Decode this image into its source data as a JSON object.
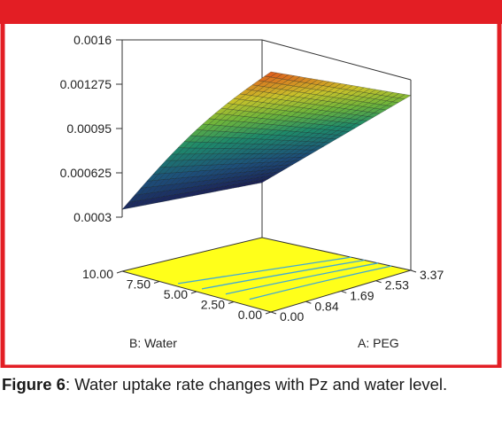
{
  "colors": {
    "frame_red": "#e31e24",
    "floor_yellow": "#ffff1a",
    "contour_blue": "#3fa8d8",
    "surface_low": "#1a1f5e",
    "surface_high": "#e05a1c"
  },
  "caption": {
    "label": "Figure 6",
    "text": ": Water uptake rate changes with Pz and water level."
  },
  "chart_data": {
    "type": "surface3d",
    "title": "",
    "z_axis": {
      "label": "",
      "ticks": [
        "0.0016",
        "0.001275",
        "0.00095",
        "0.000625",
        "0.0003"
      ],
      "range": [
        0.0003,
        0.0016
      ]
    },
    "x_axis": {
      "label": "A: PEG",
      "ticks": [
        "0.00",
        "0.84",
        "1.69",
        "2.53",
        "3.37"
      ],
      "range": [
        0.0,
        3.37
      ]
    },
    "y_axis": {
      "label": "B: Water",
      "ticks": [
        "0.00",
        "2.50",
        "5.00",
        "7.50",
        "10.00"
      ],
      "range": [
        0.0,
        10.0
      ]
    },
    "grid": false,
    "contours_on_floor": true,
    "surface_corners": [
      {
        "peg": 0.0,
        "water": 10.0,
        "rate": 0.00035
      },
      {
        "peg": 0.0,
        "water": 0.0,
        "rate": 0.0003
      },
      {
        "peg": 3.37,
        "water": 0.0,
        "rate": 0.00118
      },
      {
        "peg": 3.37,
        "water": 10.0,
        "rate": 0.0016
      }
    ]
  }
}
